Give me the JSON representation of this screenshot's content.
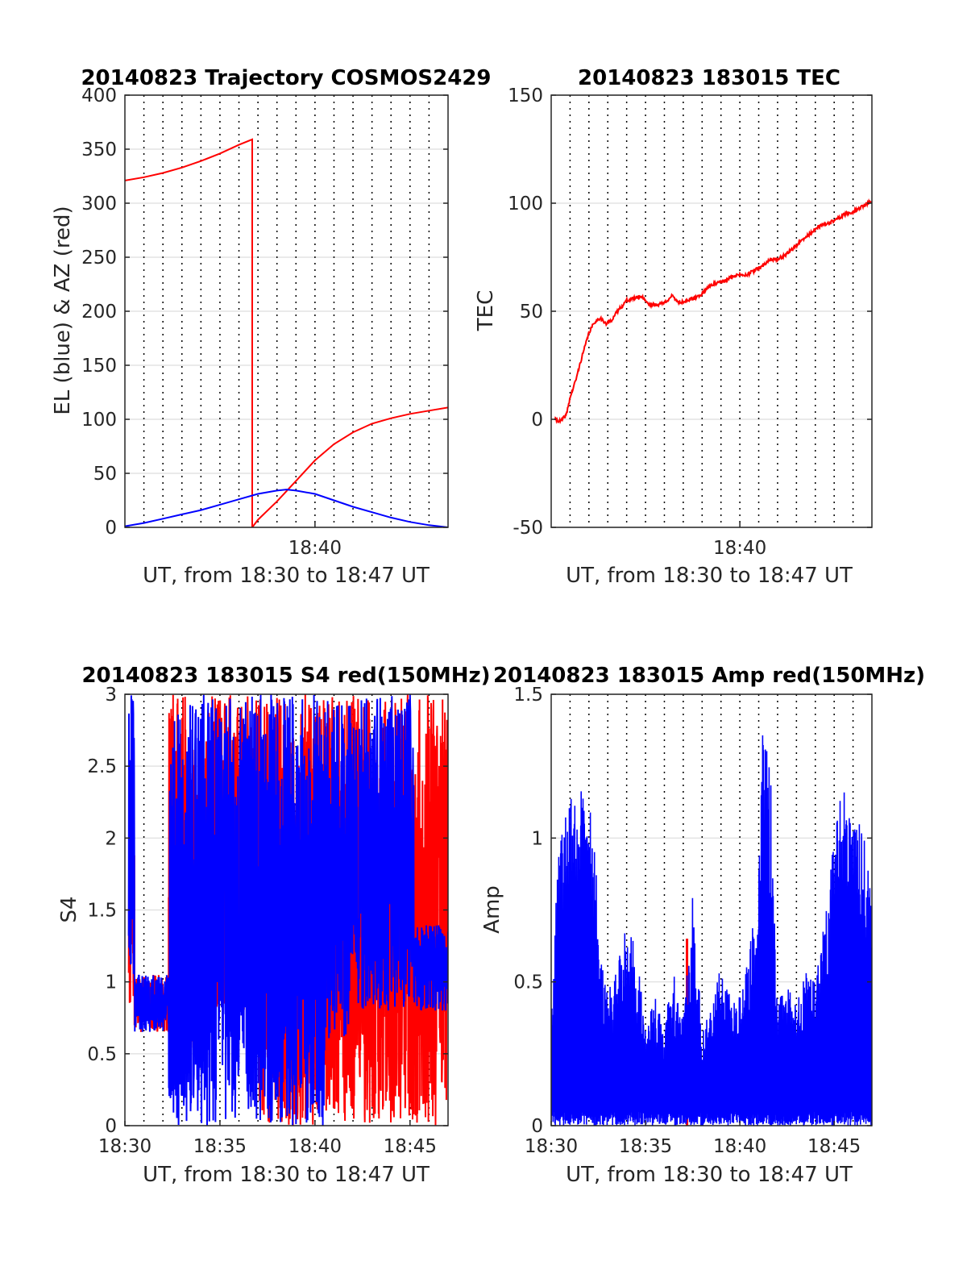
{
  "colors": {
    "el": "#0000ff",
    "az": "#ff0000",
    "tec": "#ff0000",
    "s4_red": "#ff0000",
    "s4_blue": "#0000ff",
    "amp_blue": "#0000ff",
    "amp_red": "#ff0000",
    "grid": "#e3e3e3",
    "vgrid": "#000000",
    "axis": "#262626"
  },
  "chart_data": [
    {
      "type": "line",
      "title": "20140823 Trajectory COSMOS2429",
      "xlabel": "UT, from 18:30 to 18:47 UT",
      "ylabel": "EL (blue) & AZ (red)",
      "xlim": [
        0,
        17
      ],
      "ylim": [
        0,
        400
      ],
      "yticks": [
        0,
        50,
        100,
        150,
        200,
        250,
        300,
        350,
        400
      ],
      "xticks": [
        {
          "x": 10,
          "label": "18:40"
        }
      ],
      "grid": true,
      "series": [
        {
          "color": "#ff0000",
          "x": [
            0,
            1,
            2,
            3,
            4,
            5,
            6,
            6.7,
            6.7,
            7,
            8,
            9,
            10,
            11,
            12,
            13,
            14,
            15,
            16,
            17
          ],
          "values": [
            321,
            324,
            328,
            333,
            339,
            346,
            354,
            359,
            0,
            7,
            24,
            43,
            62,
            77,
            88,
            96,
            101,
            105,
            108,
            111
          ]
        },
        {
          "color": "#0000ff",
          "x": [
            0,
            1,
            2,
            3,
            4,
            5,
            6,
            7,
            8,
            8.5,
            9,
            10,
            11,
            12,
            13,
            14,
            15,
            16,
            17
          ],
          "values": [
            1,
            4,
            8,
            12,
            16,
            21,
            26,
            31,
            34,
            35,
            34,
            31,
            25,
            19,
            14,
            9,
            5,
            2,
            0
          ]
        }
      ]
    },
    {
      "type": "line",
      "title": "20140823 183015 TEC",
      "xlabel": "UT, from 18:30 to 18:47 UT",
      "ylabel": "TEC",
      "xlim": [
        0,
        17
      ],
      "ylim": [
        -50,
        150
      ],
      "yticks": [
        -50,
        0,
        50,
        100,
        150
      ],
      "xticks": [
        {
          "x": 10,
          "label": "18:40"
        }
      ],
      "grid": true,
      "series": [
        {
          "color": "#ff0000",
          "x": [
            0.2,
            0.5,
            0.8,
            1,
            1.3,
            1.6,
            2,
            2.3,
            2.6,
            2.9,
            3.2,
            3.6,
            4,
            4.4,
            4.8,
            5.2,
            5.6,
            6,
            6.4,
            6.8,
            7.2,
            7.6,
            8,
            8.4,
            8.8,
            9.2,
            9.6,
            10,
            10.4,
            10.8,
            11.2,
            11.6,
            12,
            12.4,
            12.8,
            13.2,
            13.6,
            14,
            14.4,
            14.8,
            15.2,
            15.6,
            16,
            16.4,
            16.8,
            17
          ],
          "values": [
            0,
            -1,
            2,
            10,
            18,
            28,
            40,
            45,
            47,
            44,
            46,
            51,
            55,
            56,
            57,
            53,
            53,
            54,
            57,
            54,
            55,
            56,
            58,
            62,
            63,
            64,
            66,
            67,
            67,
            69,
            71,
            74,
            74,
            76,
            79,
            82,
            85,
            88,
            90,
            91,
            93,
            95,
            96,
            98,
            100,
            101
          ]
        }
      ]
    },
    {
      "type": "line",
      "title": "20140823 183015 S4 red(150MHz)",
      "xlabel": "UT, from 18:30 to 18:47 UT",
      "ylabel": "S4",
      "xlim": [
        0,
        17
      ],
      "ylim": [
        0,
        3
      ],
      "yticks": [
        0,
        0.5,
        1,
        1.5,
        2,
        2.5,
        3
      ],
      "xticks": [
        {
          "x": 0,
          "label": "18:30"
        },
        {
          "x": 5,
          "label": "18:35"
        },
        {
          "x": 10,
          "label": "18:40"
        },
        {
          "x": 15,
          "label": "18:45"
        }
      ],
      "grid": true,
      "series": [
        {
          "color": "#ff0000",
          "seed": 7,
          "segments": [
            [
              0.2,
              0.5,
              0.8,
              1.9
            ],
            [
              0.5,
              2.3,
              0.65,
              1.05
            ],
            [
              2.3,
              3.2,
              0.9,
              3
            ],
            [
              3.2,
              4.3,
              0.5,
              2.7
            ],
            [
              4.3,
              7.0,
              0.8,
              3
            ],
            [
              7.0,
              17.0,
              0,
              3
            ]
          ]
        },
        {
          "color": "#0000ff",
          "seed": 13,
          "segments": [
            [
              0.2,
              0.5,
              1.0,
              3
            ],
            [
              0.5,
              2.3,
              0.65,
              1.05
            ],
            [
              2.3,
              4.0,
              0,
              3
            ],
            [
              4.0,
              10.5,
              0,
              3
            ],
            [
              10.5,
              11.8,
              0.6,
              3
            ],
            [
              11.8,
              15.2,
              0.8,
              3
            ],
            [
              15.2,
              17.0,
              0.8,
              1.4
            ]
          ]
        }
      ]
    },
    {
      "type": "line",
      "title": "20140823 183015 Amp red(150MHz)",
      "xlabel": "UT, from 18:30 to 18:47 UT",
      "ylabel": "Amp",
      "xlim": [
        0,
        17
      ],
      "ylim": [
        0,
        1.5
      ],
      "yticks": [
        0,
        0.5,
        1,
        1.5
      ],
      "xticks": [
        {
          "x": 0,
          "label": "18:30"
        },
        {
          "x": 5,
          "label": "18:35"
        },
        {
          "x": 10,
          "label": "18:40"
        },
        {
          "x": 15,
          "label": "18:45"
        }
      ],
      "grid": true,
      "series": [
        {
          "color": "#ff0000",
          "spike": {
            "x": 7.2,
            "value": 0.65
          }
        },
        {
          "color": "#0000ff",
          "seed": 29,
          "envelope_x": [
            0,
            0.3,
            0.6,
            1.0,
            1.5,
            2.0,
            2.3,
            2.6,
            3.0,
            3.5,
            4.0,
            4.5,
            5.0,
            5.5,
            6.0,
            6.5,
            7.0,
            7.5,
            8.0,
            8.5,
            9.0,
            9.5,
            10.0,
            10.5,
            11.0,
            11.2,
            11.4,
            11.6,
            11.8,
            12.0,
            12.5,
            13.0,
            13.5,
            14.0,
            14.5,
            15.0,
            15.5,
            16.0,
            16.5,
            17.0
          ],
          "envelope": [
            0.4,
            0.9,
            1.05,
            1.15,
            1.2,
            1.18,
            1.0,
            0.6,
            0.45,
            0.6,
            0.7,
            0.62,
            0.35,
            0.45,
            0.35,
            0.55,
            0.38,
            0.82,
            0.35,
            0.4,
            0.6,
            0.45,
            0.45,
            0.6,
            0.9,
            1.42,
            1.35,
            1.3,
            0.8,
            0.45,
            0.5,
            0.45,
            0.55,
            0.5,
            0.75,
            1.0,
            1.22,
            1.05,
            1.1,
            0.85
          ]
        }
      ]
    }
  ]
}
